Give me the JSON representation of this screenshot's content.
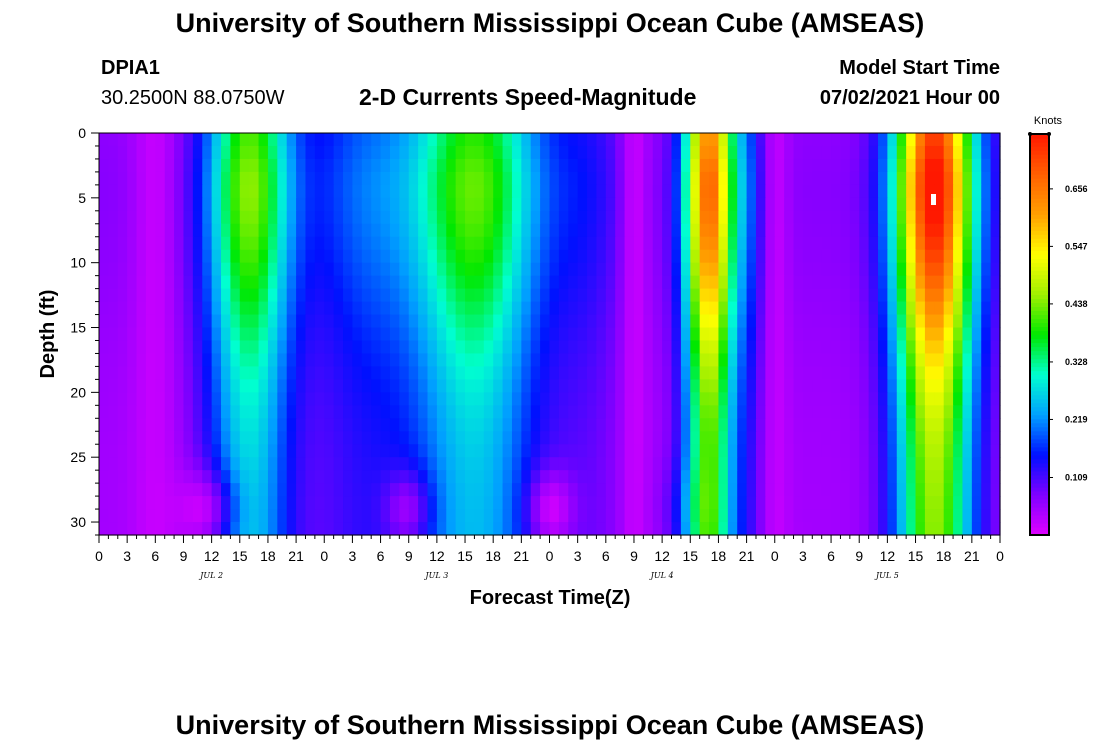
{
  "header": {
    "title": "University of Southern Mississippi Ocean Cube (AMSEAS)",
    "station_id": "DPIA1",
    "station_coords": "30.2500N  88.0750W",
    "product": "2-D Currents Speed-Magnitude",
    "model_start_label": "Model Start Time",
    "model_start_value": "07/02/2021 Hour 00"
  },
  "footer": {
    "title": "University of Southern Mississippi Ocean Cube (AMSEAS)"
  },
  "chart_data": {
    "type": "heatmap",
    "xlabel": "Forecast Time(Z)",
    "ylabel": "Depth (ft)",
    "x_tick_labels": [
      "0",
      "3",
      "6",
      "9",
      "12",
      "15",
      "18",
      "21",
      "0",
      "3",
      "6",
      "9",
      "12",
      "15",
      "18",
      "21",
      "0",
      "3",
      "6",
      "9",
      "12",
      "15",
      "18",
      "21",
      "0",
      "3",
      "6",
      "9",
      "12",
      "15",
      "18",
      "21",
      "0"
    ],
    "day_labels": [
      "JUL 2",
      "JUL 3",
      "JUL 4",
      "JUL 5"
    ],
    "x_range_hours": [
      0,
      96
    ],
    "y_ticks": [
      0,
      5,
      10,
      15,
      20,
      25,
      30
    ],
    "y_range_ft": [
      0,
      31
    ],
    "y_inverted": true,
    "colorbar": {
      "unit": "Knots",
      "range": [
        0,
        0.76
      ],
      "tick_values": [
        0.109,
        0.219,
        0.328,
        0.438,
        0.547,
        0.656
      ],
      "tick_labels": [
        "0.109",
        "0.219",
        "0.328",
        "0.438",
        "0.547",
        "0.656"
      ]
    },
    "approx_surface_peaks": [
      {
        "hour": 16,
        "knots": 0.38
      },
      {
        "hour": 40,
        "knots": 0.36
      },
      {
        "hour": 65,
        "knots": 0.62
      },
      {
        "hour": 89,
        "knots": 0.72
      }
    ],
    "approx_minima": [
      {
        "hour": 6,
        "knots": 0.04
      },
      {
        "hour": 12,
        "depth_ft": 29,
        "knots": 0.0
      },
      {
        "hour": 57,
        "knots": 0.08
      },
      {
        "hour": 72,
        "knots": 0.08
      }
    ]
  },
  "colors": {
    "scale": [
      "#e000ff",
      "#8000ff",
      "#0010ff",
      "#00a0ff",
      "#00ffd0",
      "#00e800",
      "#a0f000",
      "#ffff00",
      "#ffa000",
      "#ff6000",
      "#ff1800"
    ]
  }
}
